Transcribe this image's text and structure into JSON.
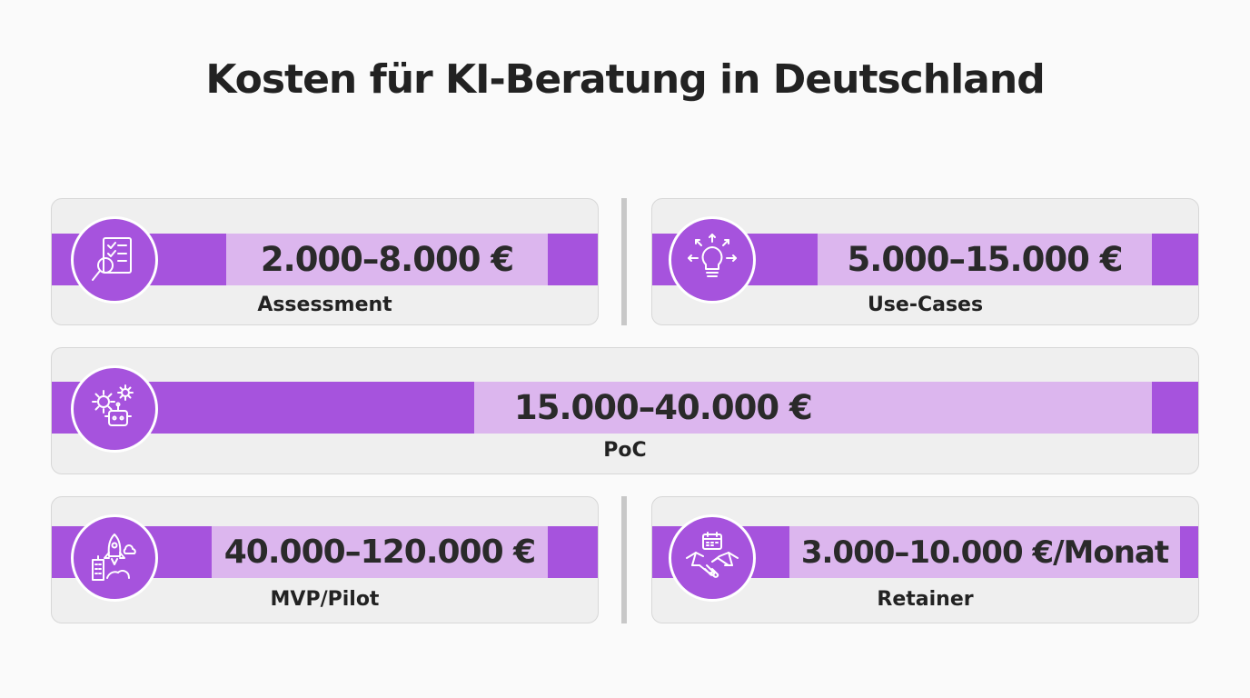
{
  "title": "Kosten für KI-Beratung in Deutschland",
  "colors": {
    "accent": "#a653dd",
    "accent_light": "#dcb6ee",
    "card": "#efefef"
  },
  "cards": [
    {
      "price": "2.000–8.000 €",
      "label": "Assessment",
      "icon": "document-magnifier-icon"
    },
    {
      "price": "5.000–15.000 €",
      "label": "Use-Cases",
      "icon": "lightbulb-icon"
    },
    {
      "price": "15.000–40.000 €",
      "label": "PoC",
      "icon": "gears-robot-icon"
    },
    {
      "price": "40.000–120.000 €",
      "label": "MVP/Pilot",
      "icon": "rocket-building-icon"
    },
    {
      "price": "3.000–10.000 €/Monat",
      "label": "Retainer",
      "icon": "handshake-calendar-icon"
    }
  ]
}
